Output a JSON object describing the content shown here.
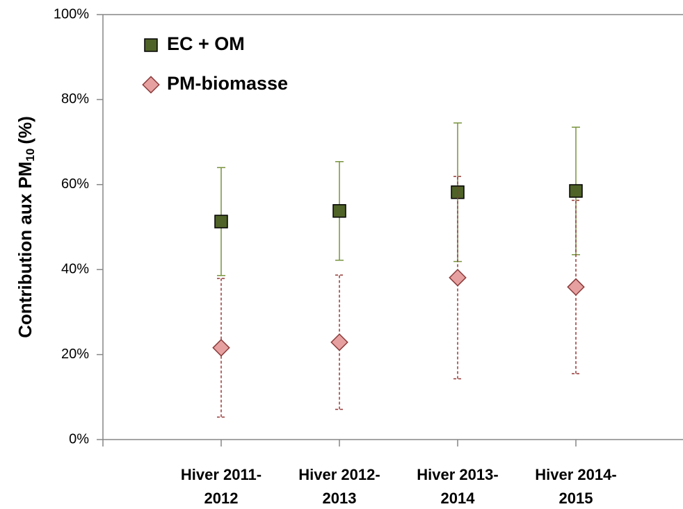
{
  "chart_data": {
    "type": "scatter",
    "categories": [
      "Hiver 2011-2012",
      "Hiver 2012-2013",
      "Hiver 2013-2014",
      "Hiver 2014-2015"
    ],
    "y_label": {
      "text": "Contribution aux PM",
      "subscript": "10",
      "suffix": "(%)"
    },
    "ylim": [
      0,
      100
    ],
    "yticks": [
      {
        "value": 0,
        "label": "0%"
      },
      {
        "value": 20,
        "label": "20%"
      },
      {
        "value": 40,
        "label": "40%"
      },
      {
        "value": 60,
        "label": "60%"
      },
      {
        "value": 80,
        "label": "80%"
      },
      {
        "value": 100,
        "label": "100%"
      }
    ],
    "legend": "top-left",
    "series": [
      {
        "name": "EC + OM",
        "marker": "square",
        "color": "#4f6228",
        "error_color": "#77933c",
        "values": [
          51.3,
          53.8,
          58.2,
          58.5
        ],
        "errors": [
          12.7,
          11.6,
          16.3,
          15.0
        ]
      },
      {
        "name": "PM-biomasse",
        "marker": "diamond",
        "color": "#e6a0a0",
        "error_color": "#953735",
        "values": [
          21.6,
          22.9,
          38.1,
          35.9
        ],
        "errors": [
          16.3,
          15.8,
          23.8,
          20.4
        ]
      }
    ]
  }
}
